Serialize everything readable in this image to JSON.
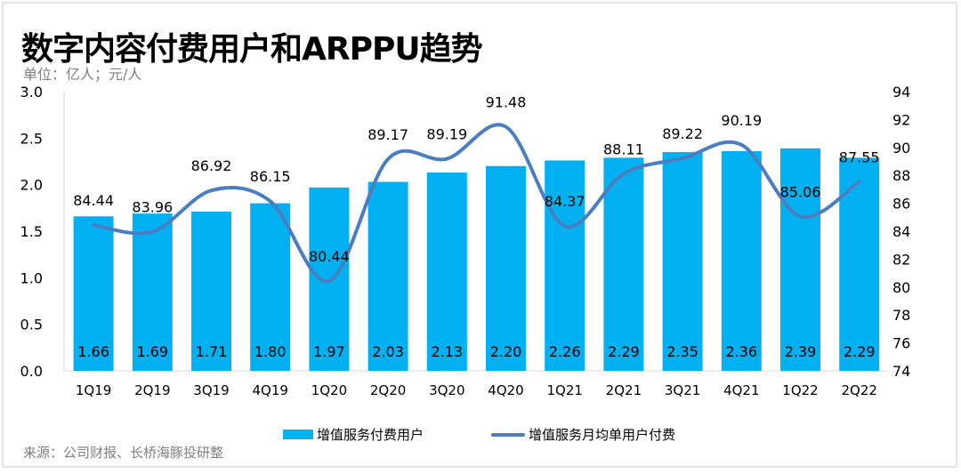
{
  "title": "数字内容付费用户和ARPPU趋势",
  "unit": "单位：亿人；元/人",
  "source": "来源：公司财报、长桥海豚投研整",
  "colors": {
    "bar": "#00B0F0",
    "line": "#4A7EC0"
  },
  "chart_data": {
    "type": "bar+line",
    "categories": [
      "1Q19",
      "2Q19",
      "3Q19",
      "4Q19",
      "1Q20",
      "2Q20",
      "3Q20",
      "4Q20",
      "1Q21",
      "2Q21",
      "3Q21",
      "4Q21",
      "1Q22",
      "2Q22"
    ],
    "series": [
      {
        "name": "增值服务付费用户",
        "type": "bar",
        "axis": "left",
        "values": [
          1.66,
          1.69,
          1.71,
          1.8,
          1.97,
          2.03,
          2.13,
          2.2,
          2.26,
          2.29,
          2.35,
          2.36,
          2.39,
          2.29
        ],
        "labels": [
          "1.66",
          "1.69",
          "1.71",
          "1.80",
          "1.97",
          "2.03",
          "2.13",
          "2.20",
          "2.26",
          "2.29",
          "2.35",
          "2.36",
          "2.39",
          "2.29"
        ]
      },
      {
        "name": "增值服务月均单用户付费",
        "type": "line",
        "smooth": true,
        "axis": "right",
        "values": [
          84.44,
          83.96,
          86.92,
          86.15,
          80.44,
          89.17,
          89.19,
          91.48,
          84.37,
          88.11,
          89.22,
          90.19,
          85.06,
          87.55
        ],
        "labels": [
          "84.44",
          "83.96",
          "86.92",
          "86.15",
          "80.44",
          "89.17",
          "89.19",
          "91.48",
          "84.37",
          "88.11",
          "89.22",
          "90.19",
          "85.06",
          "87.55"
        ]
      }
    ],
    "left_axis": {
      "ylim": [
        0,
        3.0
      ],
      "ticks": [
        "0.0",
        "0.5",
        "1.0",
        "1.5",
        "2.0",
        "2.5",
        "3.0"
      ]
    },
    "right_axis": {
      "ylim": [
        74,
        94
      ],
      "ticks": [
        "74",
        "76",
        "78",
        "80",
        "82",
        "84",
        "86",
        "88",
        "90",
        "92",
        "94"
      ]
    },
    "grid": false,
    "legend": "bottom"
  }
}
